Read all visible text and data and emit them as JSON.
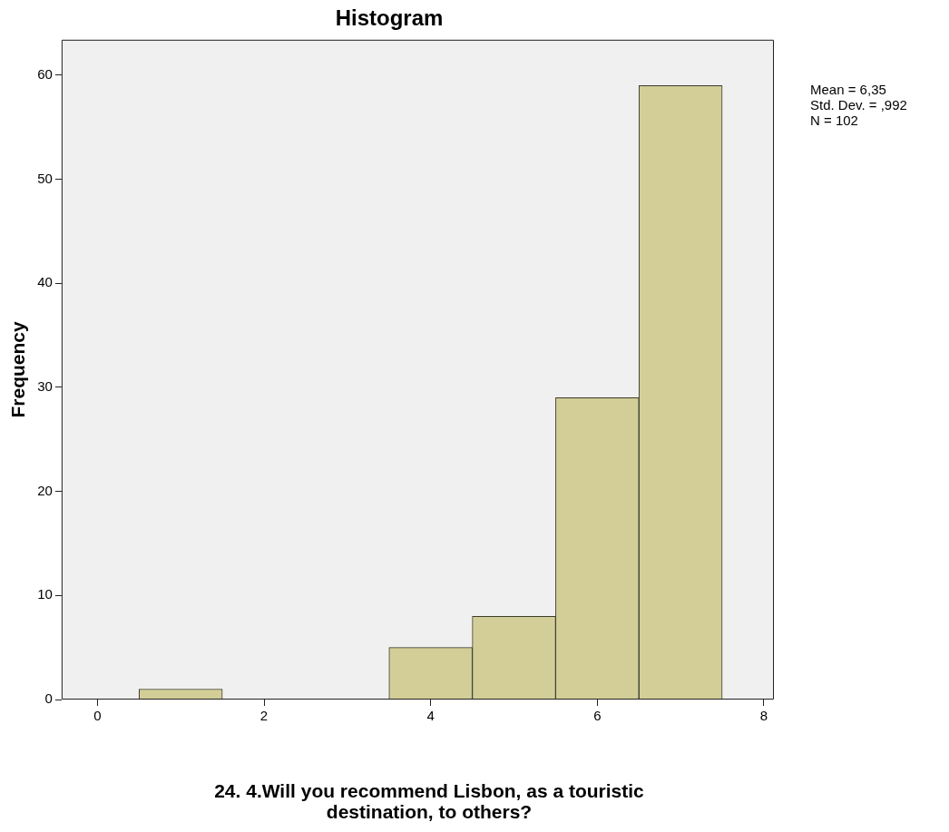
{
  "chart_data": {
    "type": "histogram",
    "title": "Histogram",
    "xlabel": "24. 4.Will you recommend Lisbon, as a touristic destination, to others?",
    "ylabel": "Frequency",
    "bins": [
      0.5,
      1.5,
      2.5,
      3.5,
      4.5,
      5.5,
      6.5,
      7.5
    ],
    "values": [
      1,
      0,
      0,
      5,
      8,
      29,
      59
    ],
    "color": "#d3ce97",
    "xlim": [
      -0.43,
      8.12
    ],
    "xticks": [
      0,
      2,
      4,
      6,
      8
    ],
    "ylim": [
      0,
      63.4
    ],
    "yticks": [
      0,
      10,
      20,
      30,
      40,
      50,
      60
    ],
    "grid": false,
    "legend": false,
    "annotations": [
      "Mean = 6,35",
      "Std. Dev. = ,992",
      "N = 102"
    ]
  }
}
